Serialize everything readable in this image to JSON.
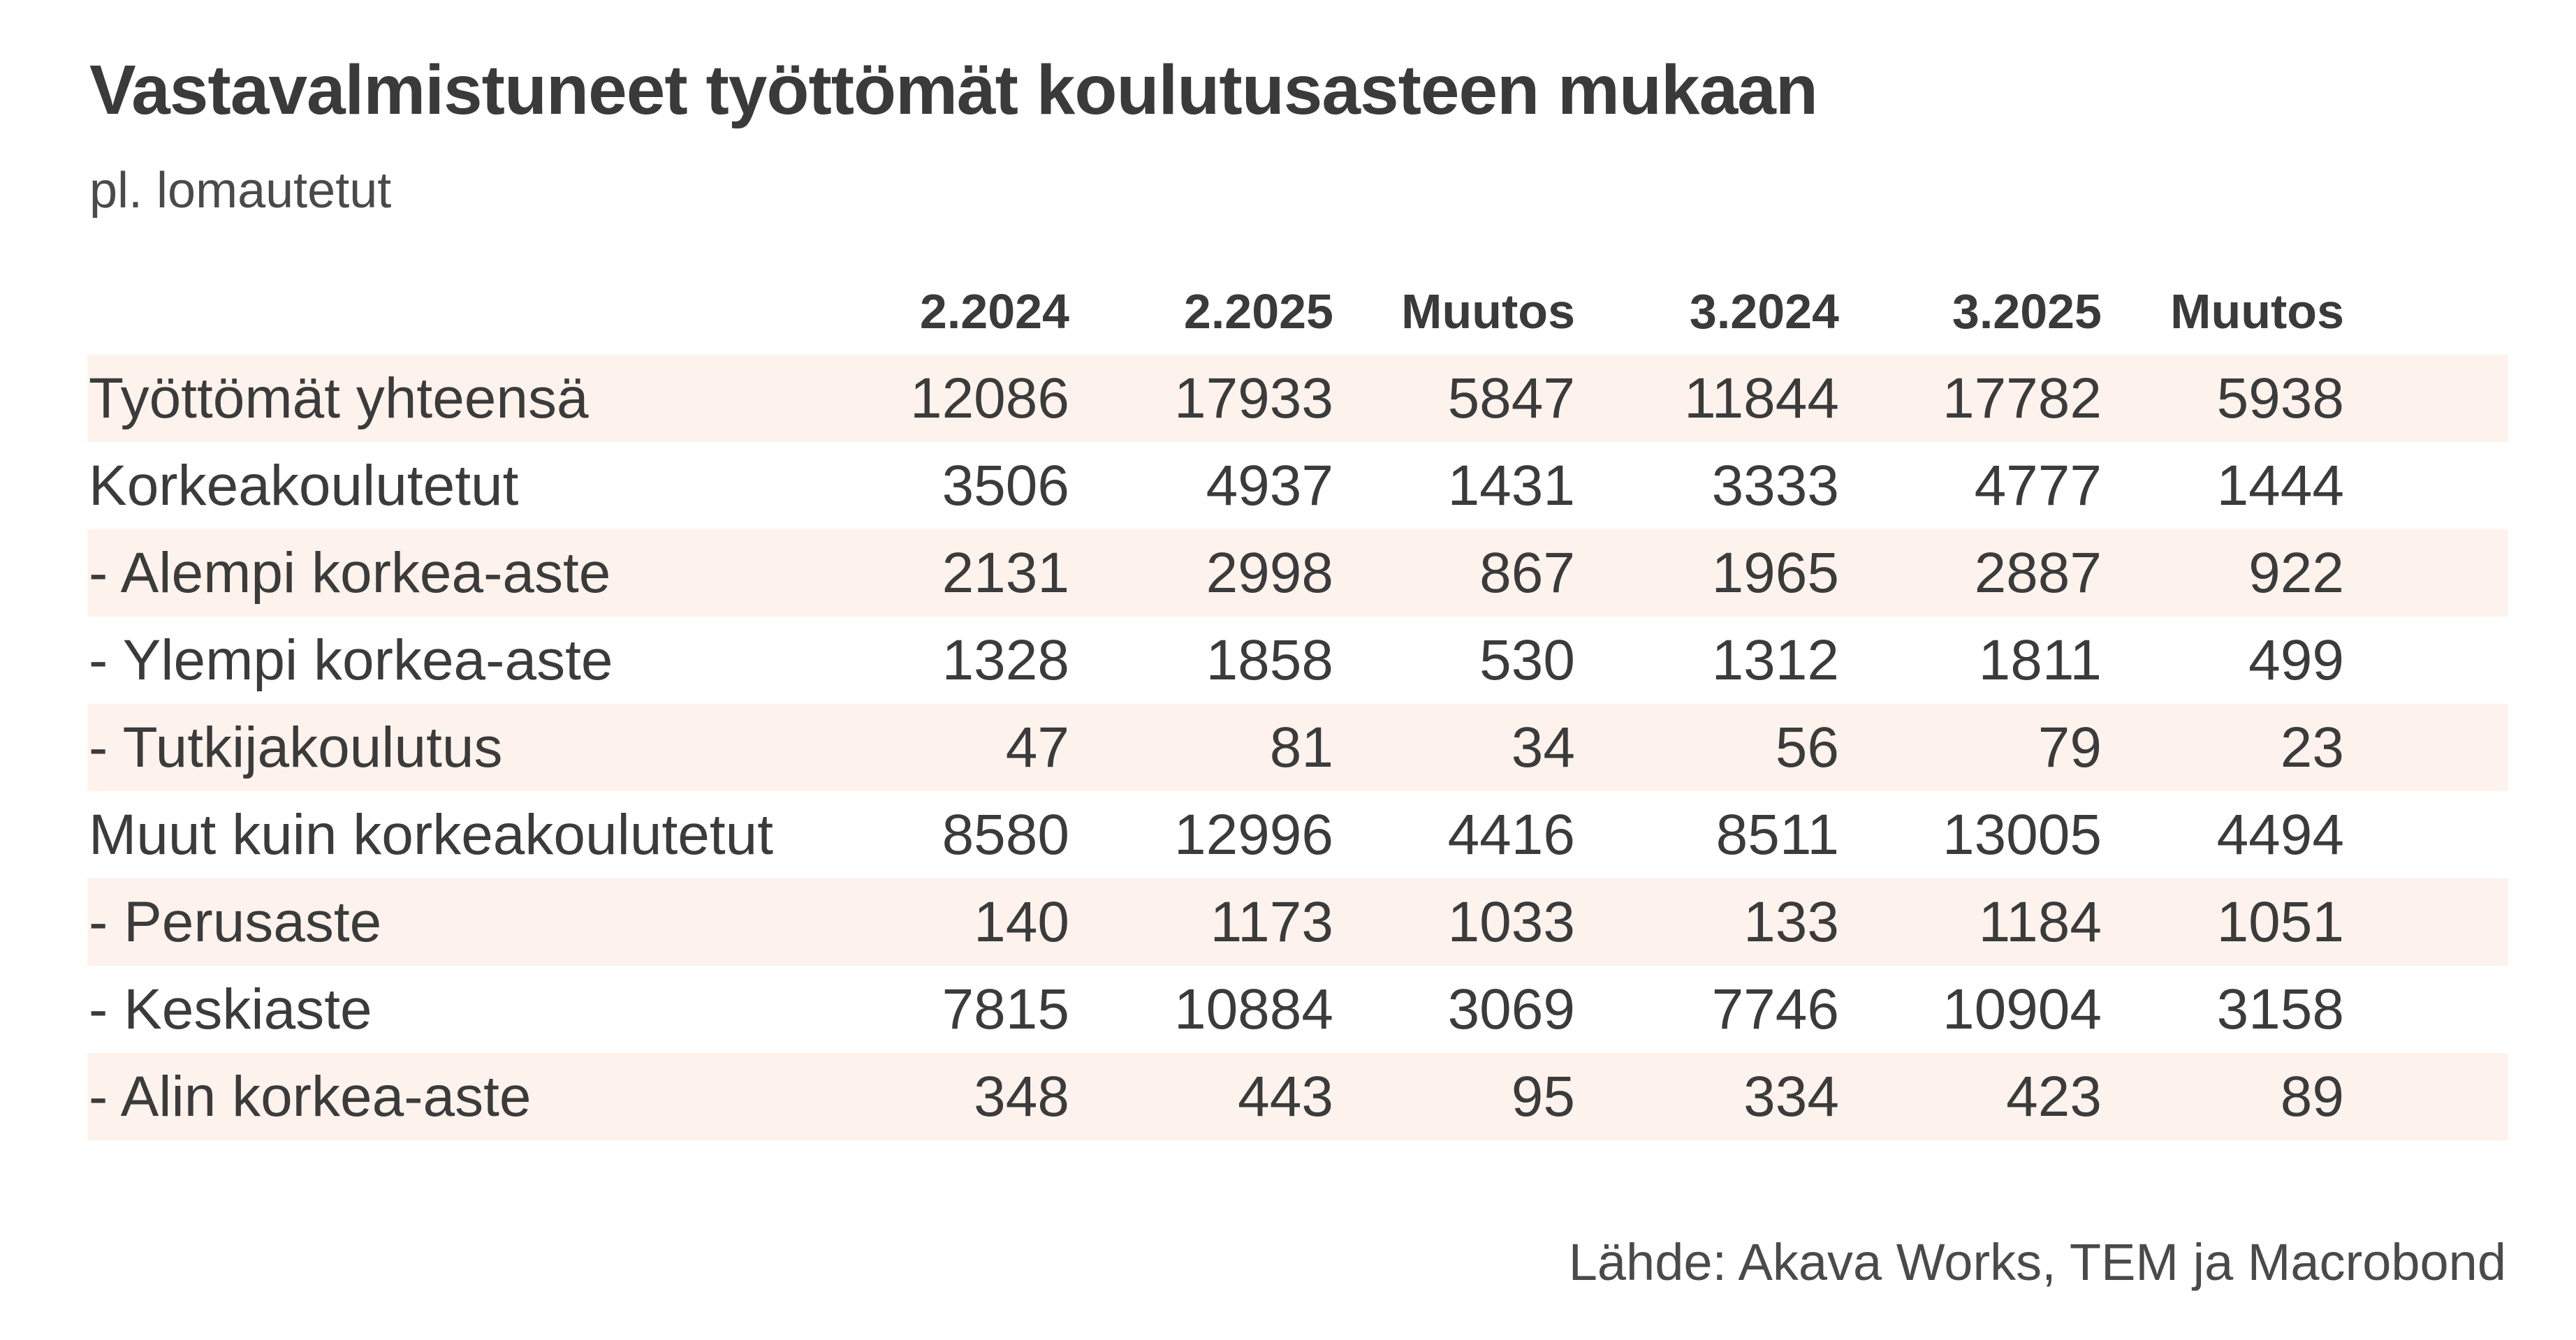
{
  "chart_data": {
    "type": "table",
    "title": "Vastavalmistuneet työttömät koulutusasteen mukaan",
    "subtitle": "pl. lomautetut",
    "columns": [
      "2.2024",
      "2.2025",
      "Muutos",
      "3.2024",
      "3.2025",
      "Muutos"
    ],
    "rows": [
      {
        "label": "Työttömät yhteensä",
        "values": [
          "12086",
          "17933",
          "5847",
          "11844",
          "17782",
          "5938"
        ]
      },
      {
        "label": "Korkeakoulutetut",
        "values": [
          "3506",
          "4937",
          "1431",
          "3333",
          "4777",
          "1444"
        ]
      },
      {
        "label": "- Alempi korkea-aste",
        "values": [
          "2131",
          "2998",
          "867",
          "1965",
          "2887",
          "922"
        ]
      },
      {
        "label": "- Ylempi korkea-aste",
        "values": [
          "1328",
          "1858",
          "530",
          "1312",
          "1811",
          "499"
        ]
      },
      {
        "label": "- Tutkijakoulutus",
        "values": [
          "47",
          "81",
          "34",
          "56",
          "79",
          "23"
        ]
      },
      {
        "label": "Muut kuin korkeakoulutetut",
        "values": [
          "8580",
          "12996",
          "4416",
          "8511",
          "13005",
          "4494"
        ]
      },
      {
        "label": "- Perusaste",
        "values": [
          "140",
          "1173",
          "1033",
          "133",
          "1184",
          "1051"
        ]
      },
      {
        "label": "- Keskiaste",
        "values": [
          "7815",
          "10884",
          "3069",
          "7746",
          "10904",
          "3158"
        ]
      },
      {
        "label": "- Alin korkea-aste",
        "values": [
          "348",
          "443",
          "95",
          "334",
          "423",
          "89"
        ]
      }
    ],
    "source": "Lähde: Akava Works, TEM ja Macrobond",
    "row_shade_color": "#fdf3ec",
    "text_color": "#3b3b3b"
  }
}
